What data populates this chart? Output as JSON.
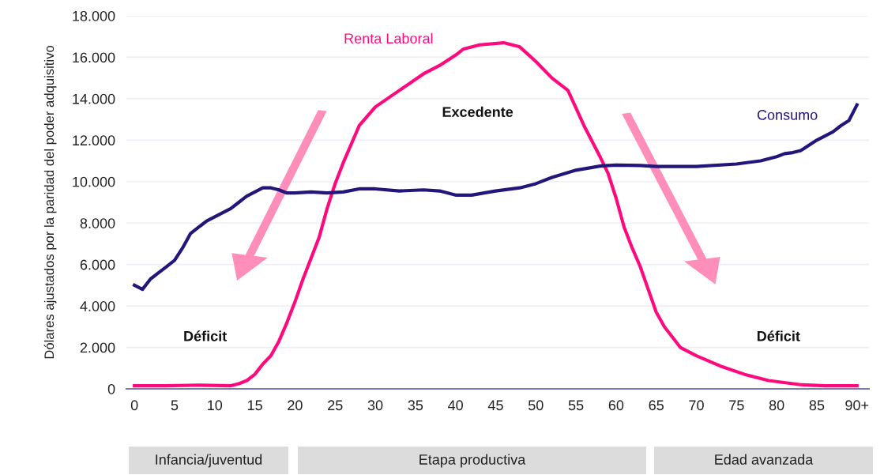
{
  "chart_data": {
    "type": "line",
    "ylabel": "Dólares ajustados por la paridad del poder adquisitivo",
    "xlim": [
      -1,
      91.5
    ],
    "ylim": [
      0,
      18000
    ],
    "xticks": [
      0,
      5,
      10,
      15,
      20,
      25,
      30,
      35,
      40,
      45,
      50,
      55,
      60,
      65,
      70,
      75,
      80,
      85,
      {
        "value": 90,
        "label": "90+"
      }
    ],
    "yticks": [
      {
        "value": 0,
        "label": "0"
      },
      {
        "value": 2000,
        "label": "2.000"
      },
      {
        "value": 4000,
        "label": "4.000"
      },
      {
        "value": 6000,
        "label": "6.000"
      },
      {
        "value": 8000,
        "label": "8.000"
      },
      {
        "value": 10000,
        "label": "10.000"
      },
      {
        "value": 12000,
        "label": "12.000"
      },
      {
        "value": 14000,
        "label": "14.000"
      },
      {
        "value": 16000,
        "label": "16.000"
      },
      {
        "value": 18000,
        "label": "18.000"
      }
    ],
    "grid": "y",
    "legend": false,
    "series": [
      {
        "name": "Renta Laboral",
        "color": "#ff0a7e",
        "x": [
          0,
          4,
          8,
          12,
          13,
          14,
          15,
          16,
          17,
          18,
          19,
          20,
          21,
          22,
          23,
          24,
          25,
          26,
          28,
          30,
          33,
          36,
          38,
          40,
          41,
          43,
          46,
          48,
          50,
          52,
          54,
          56,
          58,
          59,
          60,
          61,
          62,
          63,
          64,
          65,
          66,
          68,
          70,
          73,
          76,
          79,
          83,
          86,
          90
        ],
        "values": [
          150,
          150,
          180,
          150,
          250,
          400,
          700,
          1200,
          1600,
          2300,
          3200,
          4200,
          5300,
          6300,
          7300,
          8700,
          9900,
          10900,
          12700,
          13600,
          14400,
          15200,
          15600,
          16100,
          16400,
          16600,
          16700,
          16500,
          15800,
          15000,
          14400,
          12700,
          11200,
          10400,
          9200,
          7800,
          6800,
          5900,
          4800,
          3700,
          3000,
          2000,
          1600,
          1100,
          700,
          400,
          200,
          150,
          150
        ]
      },
      {
        "name": "Consumo",
        "color": "#22167a",
        "x": [
          0,
          1,
          2,
          3,
          4,
          5,
          6,
          7,
          8,
          9,
          10,
          11,
          12,
          13,
          14,
          15,
          16,
          17,
          18,
          19,
          20,
          22,
          24,
          26,
          28,
          30,
          33,
          36,
          38,
          40,
          42,
          45,
          48,
          50,
          52,
          55,
          58,
          60,
          63,
          65,
          70,
          75,
          78,
          80,
          81,
          82,
          83,
          85,
          87,
          88,
          89,
          90
        ],
        "values": [
          5000,
          4800,
          5300,
          5600,
          5900,
          6200,
          6800,
          7500,
          7800,
          8100,
          8300,
          8500,
          8700,
          9000,
          9300,
          9500,
          9700,
          9700,
          9600,
          9450,
          9450,
          9500,
          9450,
          9500,
          9650,
          9650,
          9550,
          9600,
          9550,
          9350,
          9350,
          9550,
          9700,
          9900,
          10200,
          10550,
          10750,
          10800,
          10780,
          10730,
          10730,
          10850,
          11000,
          11200,
          11350,
          11400,
          11500,
          12000,
          12400,
          12700,
          12950,
          13700
        ]
      }
    ],
    "annotations": [
      "Excedente",
      "Déficit",
      "Déficit",
      "Infancia/juventud",
      "Etapa productiva",
      "Edad avanzada"
    ]
  }
}
